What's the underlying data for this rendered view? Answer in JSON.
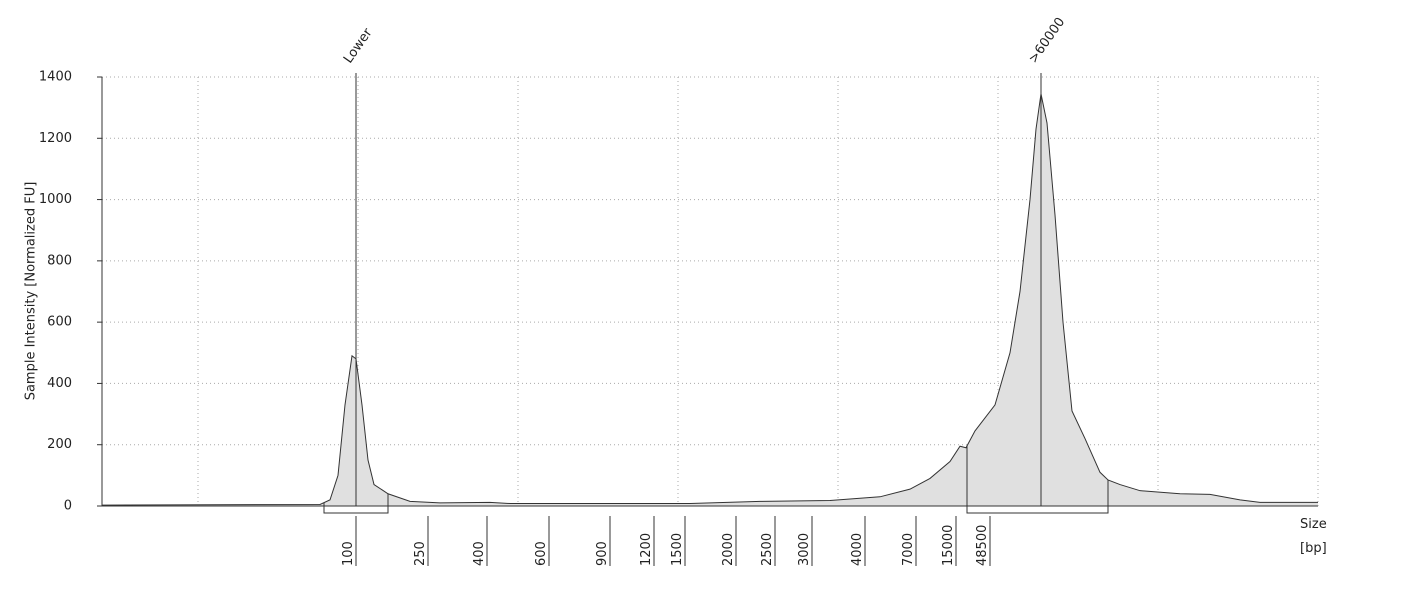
{
  "chart_data": {
    "type": "area",
    "ylabel": "Sample Intensity [Normalized FU]",
    "xlabel": "Size",
    "xunit": "[bp]",
    "color": "#e0e0e0",
    "ylim": [
      0,
      1400
    ],
    "yticks": [
      0,
      200,
      400,
      600,
      800,
      1000,
      1200,
      1400
    ],
    "xlim": [
      6.4,
      128
    ],
    "xgrid": [
      16,
      32,
      48,
      64,
      80,
      96,
      112,
      128
    ],
    "xticks": [
      {
        "value": 31.8,
        "label": "100"
      },
      {
        "value": 39.0,
        "label": "250"
      },
      {
        "value": 44.9,
        "label": "400"
      },
      {
        "value": 51.1,
        "label": "600"
      },
      {
        "value": 57.2,
        "label": "900"
      },
      {
        "value": 61.6,
        "label": "1200"
      },
      {
        "value": 64.7,
        "label": "1500"
      },
      {
        "value": 69.8,
        "label": "2000"
      },
      {
        "value": 73.7,
        "label": "2500"
      },
      {
        "value": 77.4,
        "label": "3000"
      },
      {
        "value": 82.7,
        "label": "4000"
      },
      {
        "value": 87.8,
        "label": "7000"
      },
      {
        "value": 91.8,
        "label": "15000"
      },
      {
        "value": 95.2,
        "label": "48500"
      }
    ],
    "grid": true,
    "x": [
      6.4,
      28.2,
      29.2,
      30.0,
      30.7,
      31.4,
      31.8,
      32.4,
      33.0,
      33.6,
      35.0,
      37.2,
      40.2,
      45.2,
      47.2,
      65.2,
      72.2,
      79.2,
      84.2,
      87.2,
      89.2,
      91.2,
      92.2,
      92.8,
      93.7,
      95.7,
      97.2,
      98.2,
      99.2,
      99.8,
      100.3,
      100.9,
      101.7,
      102.5,
      103.4,
      104.7,
      106.2,
      107.0,
      108.2,
      110.2,
      114.2,
      117.2,
      120.2,
      122.2,
      128.0
    ],
    "values": [
      3,
      5,
      20,
      100,
      330,
      490,
      480,
      330,
      150,
      70,
      40,
      15,
      10,
      12,
      8,
      8,
      15,
      18,
      30,
      55,
      90,
      145,
      195,
      190,
      245,
      330,
      500,
      700,
      1000,
      1230,
      1345,
      1250,
      950,
      600,
      310,
      220,
      110,
      85,
      70,
      50,
      40,
      38,
      20,
      12,
      12
    ],
    "annotations": [
      {
        "x": 31.8,
        "text": "Lower"
      },
      {
        "x": 100.3,
        "text": ">60000"
      }
    ],
    "regions": [
      [
        28.6,
        35.0
      ],
      [
        92.9,
        107.0
      ]
    ]
  }
}
